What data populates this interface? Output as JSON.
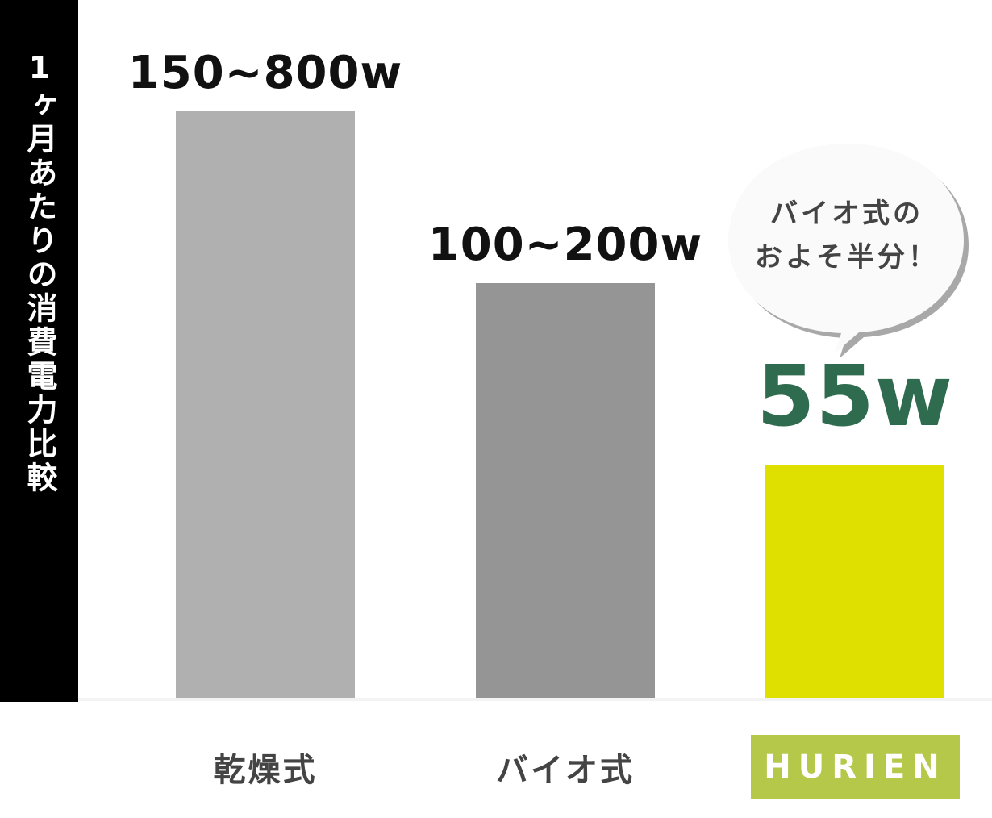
{
  "chart_data": {
    "type": "bar",
    "title": "1ヶ月あたりの消費電力比較",
    "categories": [
      "乾燥式",
      "バイオ式",
      "HURIEN"
    ],
    "value_labels": [
      "150~800w",
      "100~200w",
      "55w"
    ],
    "values": [
      [
        150,
        800
      ],
      [
        100,
        200
      ],
      [
        55
      ]
    ],
    "unit": "w",
    "colors": [
      "#b0b0b0",
      "#959595",
      "#dfe000"
    ],
    "highlight_label_color": "#2f6b4f",
    "category_highlight_color": "#b5c84a",
    "grid": false,
    "annotation": {
      "lines": [
        "バイオ式の",
        "およそ半分！"
      ]
    }
  }
}
